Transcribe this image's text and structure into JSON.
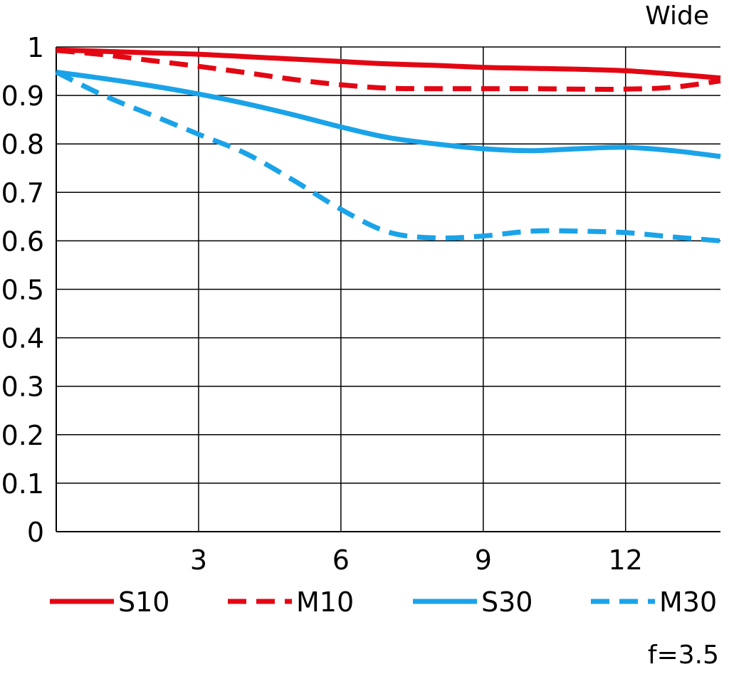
{
  "chart_data": {
    "type": "line",
    "title": "Wide",
    "note": "f=3.5",
    "xlim": [
      0,
      14
    ],
    "ylim": [
      0,
      1
    ],
    "x_ticks": [
      "3",
      "6",
      "9",
      "12"
    ],
    "x_tick_values": [
      3,
      6,
      9,
      12
    ],
    "y_ticks": [
      "0",
      "0.1",
      "0.2",
      "0.3",
      "0.4",
      "0.5",
      "0.6",
      "0.7",
      "0.8",
      "0.9",
      "1"
    ],
    "y_tick_values": [
      0,
      0.1,
      0.2,
      0.3,
      0.4,
      0.5,
      0.6,
      0.7,
      0.8,
      0.9,
      1.0
    ],
    "grid": true,
    "legend_placement": "bottom",
    "series": [
      {
        "name": "S10",
        "color": "#e30613",
        "dash": false,
        "x": [
          0,
          1,
          2,
          3,
          4,
          5,
          6,
          7,
          8,
          9,
          10,
          11,
          12,
          13,
          14
        ],
        "y": [
          0.994,
          0.991,
          0.988,
          0.985,
          0.98,
          0.975,
          0.97,
          0.965,
          0.962,
          0.958,
          0.956,
          0.954,
          0.951,
          0.944,
          0.936
        ]
      },
      {
        "name": "M10",
        "color": "#e30613",
        "dash": true,
        "x": [
          0,
          1,
          2,
          3,
          4,
          5,
          6,
          7,
          8,
          9,
          10,
          11,
          12,
          13,
          14
        ],
        "y": [
          0.993,
          0.984,
          0.972,
          0.96,
          0.947,
          0.933,
          0.922,
          0.915,
          0.914,
          0.914,
          0.914,
          0.913,
          0.913,
          0.917,
          0.93
        ]
      },
      {
        "name": "S30",
        "color": "#1aa3e8",
        "dash": false,
        "x": [
          0,
          1,
          2,
          3,
          4,
          5,
          6,
          7,
          8,
          9,
          10,
          11,
          12,
          13,
          14
        ],
        "y": [
          0.948,
          0.935,
          0.92,
          0.903,
          0.883,
          0.86,
          0.835,
          0.813,
          0.8,
          0.79,
          0.786,
          0.79,
          0.793,
          0.786,
          0.774
        ]
      },
      {
        "name": "M30",
        "color": "#1aa3e8",
        "dash": true,
        "x": [
          0,
          1,
          2,
          3,
          4,
          5,
          6,
          7,
          8,
          9,
          10,
          11,
          12,
          13,
          14
        ],
        "y": [
          0.948,
          0.9,
          0.86,
          0.82,
          0.78,
          0.725,
          0.665,
          0.618,
          0.606,
          0.61,
          0.62,
          0.62,
          0.617,
          0.608,
          0.6
        ]
      }
    ]
  }
}
